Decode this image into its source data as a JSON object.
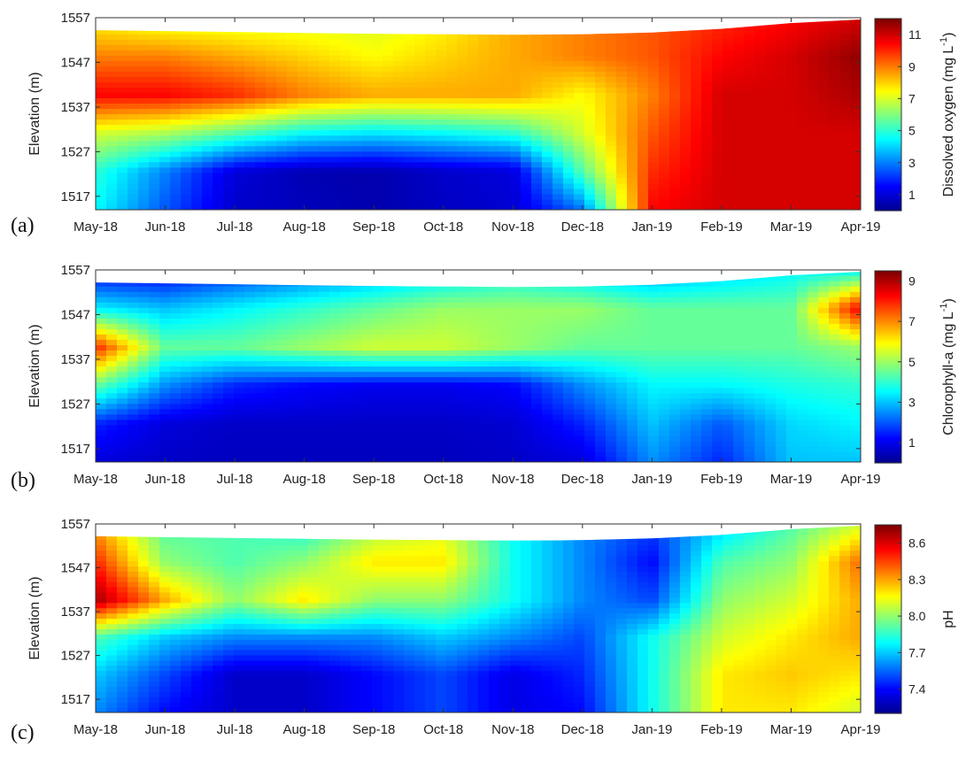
{
  "chart_data": [
    {
      "type": "heatmap",
      "panel_label": "(a)",
      "ylabel": "Elevation (m)",
      "colorbar_label_text": "Dissolved oxygen (mg L",
      "colorbar_label_sup": "-1",
      "colorbar_label_close": ")",
      "x_tick_labels": [
        "May-18",
        "Jun-18",
        "Jul-18",
        "Aug-18",
        "Sep-18",
        "Oct-18",
        "Nov-18",
        "Dec-18",
        "Jan-19",
        "Feb-19",
        "Mar-19",
        "Apr-19"
      ],
      "y_tick_labels": [
        "1517",
        "1527",
        "1537",
        "1547",
        "1557"
      ],
      "y_ticks": [
        1517,
        1527,
        1537,
        1547,
        1557
      ],
      "ylim": [
        1514,
        1557
      ],
      "colorbar_ticks": [
        1,
        3,
        5,
        7,
        9,
        11
      ],
      "colorbar_tick_labels": [
        "1",
        "3",
        "5",
        "7",
        "9",
        "11"
      ],
      "colorbar_range": [
        0,
        12
      ],
      "colormap": "jet",
      "surface_elevation": [
        1554.2,
        1554.0,
        1553.8,
        1553.6,
        1553.4,
        1553.3,
        1553.2,
        1553.3,
        1553.7,
        1554.5,
        1555.8,
        1556.6
      ],
      "values": [
        [
          4.5,
          2.5,
          0.8,
          0.6,
          0.4,
          0.7,
          0.9,
          2.8,
          10.5,
          11.0,
          11.0,
          11.0
        ],
        [
          5.0,
          3.0,
          1.0,
          0.5,
          0.4,
          0.8,
          1.0,
          5.5,
          10.0,
          11.0,
          11.0,
          11.0
        ],
        [
          7.0,
          6.5,
          5.5,
          4.5,
          4.2,
          4.5,
          5.0,
          7.0,
          9.5,
          11.0,
          11.0,
          11.0
        ],
        [
          10.5,
          10.5,
          10.0,
          9.0,
          8.5,
          8.5,
          8.5,
          7.5,
          9.0,
          11.0,
          11.0,
          11.5
        ],
        [
          9.0,
          9.0,
          8.5,
          8.0,
          7.5,
          8.0,
          8.5,
          9.0,
          9.5,
          10.5,
          11.0,
          11.8
        ],
        [
          7.5,
          7.0,
          7.0,
          7.0,
          7.0,
          7.5,
          8.5,
          9.0,
          9.5,
          10.0,
          10.5,
          11.0
        ]
      ]
    },
    {
      "type": "heatmap",
      "panel_label": "(b)",
      "ylabel": "Elevation (m)",
      "colorbar_label_text": "Chlorophyll-a (mg L",
      "colorbar_label_sup": "-1",
      "colorbar_label_close": ")",
      "x_tick_labels": [
        "May-18",
        "Jun-18",
        "Jul-18",
        "Aug-18",
        "Sep-18",
        "Oct-18",
        "Nov-18",
        "Dec-18",
        "Jan-19",
        "Feb-19",
        "Mar-19",
        "Apr-19"
      ],
      "y_tick_labels": [
        "1517",
        "1527",
        "1537",
        "1547",
        "1557"
      ],
      "y_ticks": [
        1517,
        1527,
        1537,
        1547,
        1557
      ],
      "ylim": [
        1514,
        1557
      ],
      "colorbar_ticks": [
        1,
        3,
        5,
        7,
        9
      ],
      "colorbar_tick_labels": [
        "1",
        "3",
        "5",
        "7",
        "9"
      ],
      "colorbar_range": [
        0,
        9.5
      ],
      "colormap": "jet",
      "surface_elevation": [
        1554.2,
        1554.0,
        1553.8,
        1553.6,
        1553.4,
        1553.3,
        1553.2,
        1553.3,
        1553.7,
        1554.5,
        1555.8,
        1556.6
      ],
      "values": [
        [
          0.8,
          0.6,
          0.5,
          0.5,
          0.5,
          0.5,
          0.6,
          0.8,
          2.5,
          1.5,
          3.0,
          3.0
        ],
        [
          1.5,
          0.8,
          0.6,
          0.6,
          0.6,
          0.6,
          0.7,
          1.5,
          3.0,
          2.0,
          3.2,
          3.5
        ],
        [
          4.5,
          2.5,
          1.5,
          1.2,
          1.0,
          1.0,
          1.2,
          2.5,
          3.5,
          3.5,
          3.8,
          4.0
        ],
        [
          8.0,
          4.5,
          4.5,
          5.0,
          5.5,
          5.5,
          5.0,
          4.5,
          4.5,
          4.5,
          4.5,
          5.0
        ],
        [
          3.5,
          3.0,
          3.5,
          4.0,
          4.5,
          5.0,
          5.0,
          5.0,
          4.5,
          4.5,
          4.5,
          8.5
        ],
        [
          1.0,
          1.0,
          1.5,
          2.0,
          2.5,
          3.0,
          3.5,
          3.0,
          2.5,
          3.0,
          3.5,
          3.5
        ]
      ]
    },
    {
      "type": "heatmap",
      "panel_label": "(c)",
      "ylabel": "Elevation (m)",
      "colorbar_label_text": "pH",
      "colorbar_label_sup": "",
      "colorbar_label_close": "",
      "x_tick_labels": [
        "May-18",
        "Jun-18",
        "Jul-18",
        "Aug-18",
        "Sep-18",
        "Oct-18",
        "Nov-18",
        "Dec-18",
        "Jan-19",
        "Feb-19",
        "Mar-19",
        "Apr-19"
      ],
      "y_tick_labels": [
        "1517",
        "1527",
        "1537",
        "1547",
        "1557"
      ],
      "y_ticks": [
        1517,
        1527,
        1537,
        1547,
        1557
      ],
      "ylim": [
        1514,
        1557
      ],
      "colorbar_ticks": [
        7.4,
        7.7,
        8.0,
        8.3,
        8.6
      ],
      "colorbar_tick_labels": [
        "7.4",
        "7.7",
        "8.0",
        "8.3",
        "8.6"
      ],
      "colorbar_range": [
        7.2,
        8.75
      ],
      "colormap": "jet",
      "surface_elevation": [
        1554.2,
        1554.0,
        1553.8,
        1553.6,
        1553.4,
        1553.3,
        1553.2,
        1553.3,
        1553.7,
        1554.5,
        1555.8,
        1556.6
      ],
      "values": [
        [
          7.6,
          7.4,
          7.3,
          7.3,
          7.4,
          7.5,
          7.35,
          7.4,
          7.8,
          8.2,
          8.2,
          8.1
        ],
        [
          7.7,
          7.5,
          7.3,
          7.3,
          7.4,
          7.5,
          7.35,
          7.45,
          7.8,
          8.2,
          8.25,
          8.2
        ],
        [
          7.9,
          7.7,
          7.6,
          7.6,
          7.6,
          7.7,
          7.6,
          7.5,
          7.8,
          8.1,
          8.2,
          8.3
        ],
        [
          8.7,
          8.3,
          8.0,
          8.2,
          8.0,
          8.0,
          7.8,
          7.6,
          7.5,
          8.0,
          8.1,
          8.3
        ],
        [
          8.5,
          8.0,
          7.9,
          8.0,
          8.2,
          8.2,
          7.8,
          7.6,
          7.4,
          7.9,
          8.0,
          8.4
        ],
        [
          8.3,
          7.9,
          7.9,
          7.8,
          8.0,
          8.1,
          7.8,
          7.6,
          7.5,
          7.7,
          7.9,
          8.1
        ]
      ]
    }
  ]
}
